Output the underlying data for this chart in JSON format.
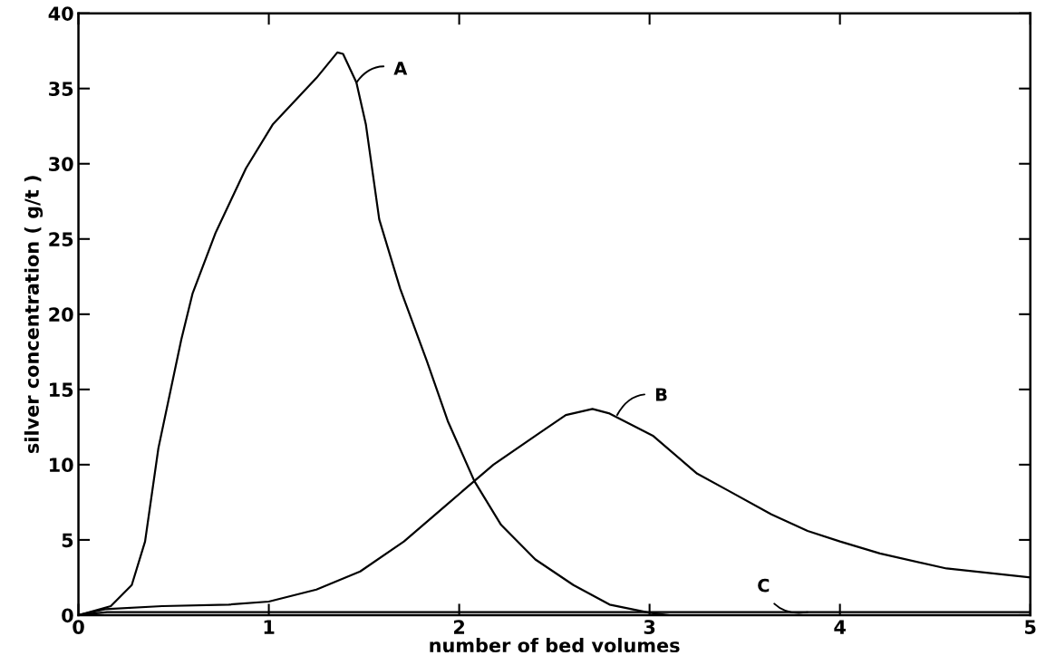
{
  "chart_data": {
    "type": "line",
    "xlabel": "number of bed volumes",
    "ylabel": "silver concentration ( g/t )",
    "xlim": [
      0,
      5
    ],
    "ylim": [
      0,
      40
    ],
    "xticks": [
      0,
      1,
      2,
      3,
      4,
      5
    ],
    "yticks": [
      0,
      5,
      10,
      15,
      20,
      25,
      30,
      35,
      40
    ],
    "grid": false,
    "legend": false,
    "series": [
      {
        "color": "#000000",
        "x": [
          0,
          0.17,
          0.28,
          0.35,
          0.42,
          0.54,
          0.6,
          0.72,
          0.88,
          1.02,
          1.25,
          1.36,
          1.39,
          1.46,
          1.51,
          1.58,
          1.69,
          1.83,
          1.94,
          2.08,
          2.22,
          2.4,
          2.6,
          2.79,
          3.0,
          3.1
        ],
        "values": [
          0,
          0.6,
          2.0,
          4.9,
          11.1,
          18.3,
          21.4,
          25.4,
          29.7,
          32.6,
          35.7,
          37.4,
          37.3,
          35.4,
          32.6,
          26.3,
          21.7,
          16.9,
          12.9,
          8.9,
          6.0,
          3.7,
          2.0,
          0.7,
          0.15,
          0
        ]
      },
      {
        "color": "#000000",
        "x": [
          0,
          0.14,
          0.44,
          0.79,
          1.0,
          1.25,
          1.48,
          1.71,
          1.94,
          2.18,
          2.41,
          2.56,
          2.7,
          2.79,
          3.02,
          3.25,
          3.41,
          3.64,
          3.83,
          4.0,
          4.21,
          4.56,
          5.0
        ],
        "values": [
          0,
          0.4,
          0.6,
          0.7,
          0.9,
          1.7,
          2.9,
          4.9,
          7.4,
          10,
          12,
          13.3,
          13.7,
          13.4,
          11.9,
          9.4,
          8.3,
          6.7,
          5.6,
          4.9,
          4.1,
          3.1,
          2.5
        ]
      },
      {
        "color": "#000000",
        "x": [
          0,
          0.15,
          5.0
        ],
        "values": [
          0,
          0.2,
          0.2
        ]
      }
    ],
    "annotations": [
      {
        "text": "A",
        "x": 1.46,
        "y": 35.4
      },
      {
        "text": "B",
        "x": 2.83,
        "y": 13.3
      },
      {
        "text": "C",
        "x": 3.83,
        "y": 0.2
      }
    ]
  }
}
